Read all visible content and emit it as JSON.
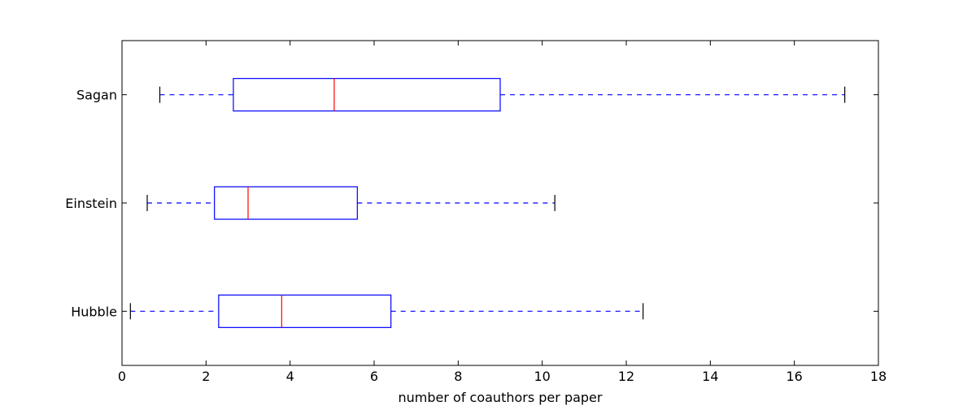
{
  "chart_data": {
    "type": "boxplot",
    "orientation": "horizontal",
    "xlabel": "number of coauthors per paper",
    "ylabel": "",
    "xlim": [
      0,
      18
    ],
    "xticks": [
      0,
      2,
      4,
      6,
      8,
      10,
      12,
      14,
      16,
      18
    ],
    "grid": false,
    "categories": [
      "Hubble",
      "Einstein",
      "Sagan"
    ],
    "boxes": [
      {
        "label": "Hubble",
        "whisker_low": 0.2,
        "q1": 2.3,
        "median": 3.8,
        "q3": 6.4,
        "whisker_high": 12.4
      },
      {
        "label": "Einstein",
        "whisker_low": 0.6,
        "q1": 2.2,
        "median": 3.0,
        "q3": 5.6,
        "whisker_high": 10.3
      },
      {
        "label": "Sagan",
        "whisker_low": 0.9,
        "q1": 2.65,
        "median": 5.05,
        "q3": 9.0,
        "whisker_high": 17.2
      }
    ],
    "colors": {
      "box": "#0000ff",
      "median": "#ff0000",
      "whisker": "#0000ff",
      "cap": "#000000",
      "frame": "#000000"
    }
  }
}
